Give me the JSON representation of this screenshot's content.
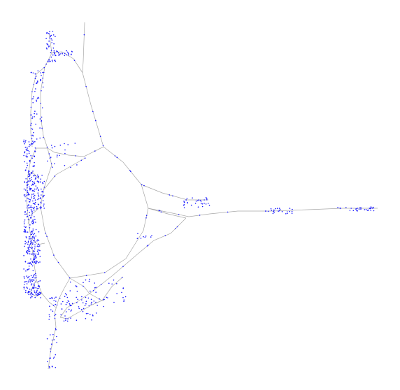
{
  "graph": {
    "edge_color": "#a8a8a8",
    "node_color": "#1a1aff",
    "background": "#ffffff"
  }
}
